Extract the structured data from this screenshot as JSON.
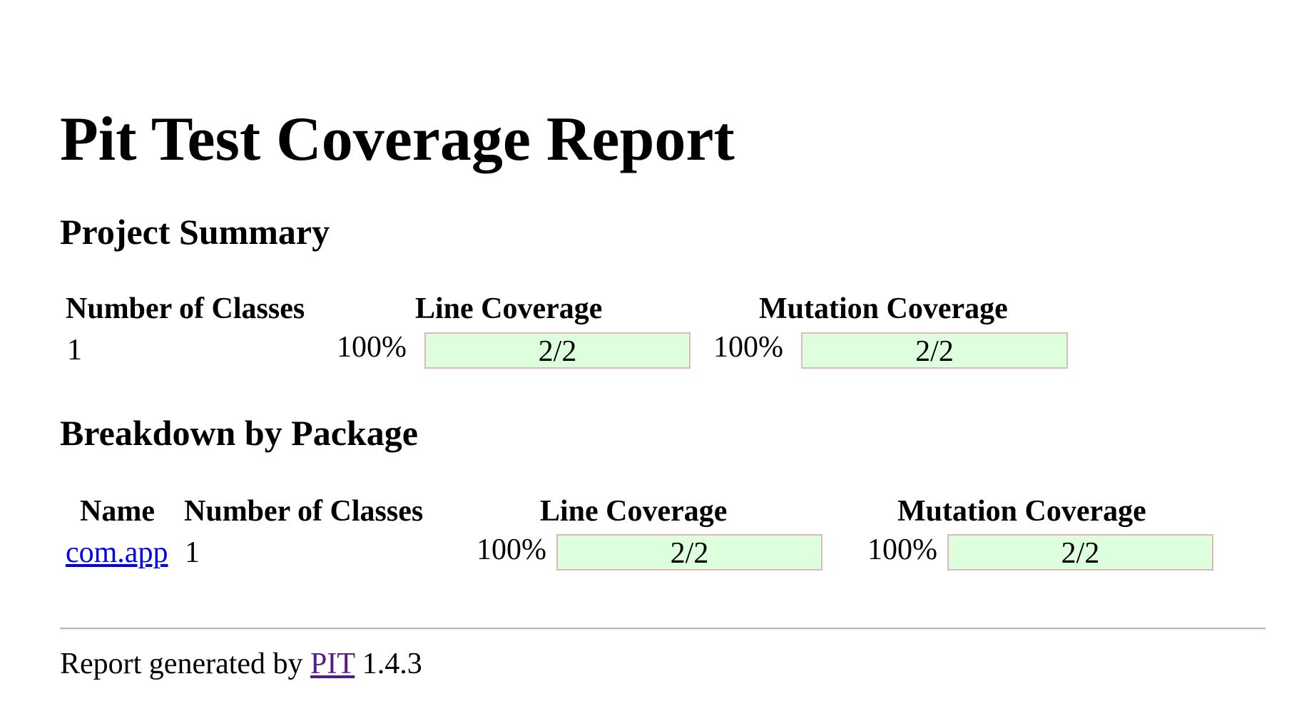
{
  "title": "Pit Test Coverage Report",
  "project_summary": {
    "heading": "Project Summary",
    "headers": {
      "classes": "Number of Classes",
      "line": "Line Coverage",
      "mutation": "Mutation Coverage"
    },
    "row": {
      "classes": "1",
      "line_percent": "100%",
      "line_ratio": "2/2",
      "line_fill": 1.0,
      "mutation_percent": "100%",
      "mutation_ratio": "2/2",
      "mutation_fill": 1.0
    }
  },
  "breakdown": {
    "heading": "Breakdown by Package",
    "headers": {
      "name": "Name",
      "classes": "Number of Classes",
      "line": "Line Coverage",
      "mutation": "Mutation Coverage"
    },
    "rows": [
      {
        "name": "com.app",
        "classes": "1",
        "line_percent": "100%",
        "line_ratio": "2/2",
        "line_fill": 1.0,
        "mutation_percent": "100%",
        "mutation_ratio": "2/2",
        "mutation_fill": 1.0
      }
    ]
  },
  "footer": {
    "prefix": "Report generated by",
    "link_label": "PIT",
    "version": "1.4.3"
  },
  "colors": {
    "coverage_fill": "#ddffdd",
    "coverage_border": "#dfb8b8",
    "link": "#0000ee",
    "visited_link": "#551a8b"
  }
}
